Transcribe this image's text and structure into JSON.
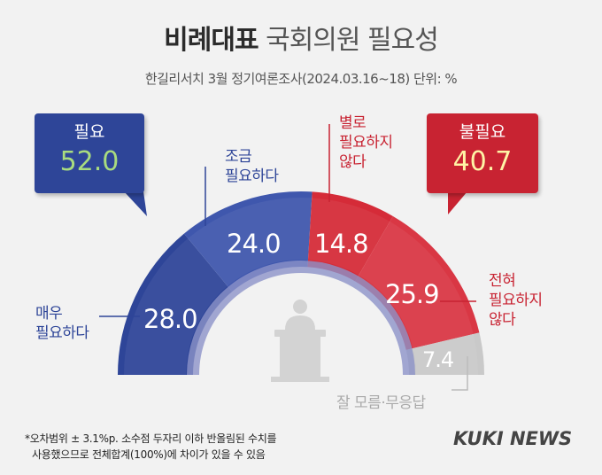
{
  "header": {
    "title_bold": "비례대표",
    "title_light": "국회의원 필요성",
    "subtitle": "한길리서치 3월 정기여론조사(2024.03.16~18) 단위: %"
  },
  "callouts": {
    "need_label": "필요",
    "need_value": "52.0",
    "noneed_label": "불필요",
    "noneed_value": "40.7"
  },
  "colors": {
    "very_needed": "#2e4598",
    "somewhat_needed": "#3f57ad",
    "not_very_needed": "#d52b38",
    "not_at_all_needed": "#d93744",
    "dont_know": "#c9c9c9"
  },
  "chart_data": {
    "type": "pie",
    "variant": "semicircle donut",
    "categories": [
      "매우 필요하다",
      "조금 필요하다",
      "별로 필요하지 않다",
      "전혀 필요하지 않다",
      "잘 모름·무응답"
    ],
    "values": [
      28.0,
      24.0,
      14.8,
      25.9,
      7.4
    ],
    "category_labels": {
      "c0_line1": "매우",
      "c0_line2": "필요하다",
      "c1_line1": "조금",
      "c1_line2": "필요하다",
      "c2_line1": "별로",
      "c2_line2": "필요하지",
      "c2_line3": "않다",
      "c3_line1": "전혀",
      "c3_line2": "필요하지",
      "c3_line3": "않다",
      "c4_line1": "잘 모름·무응답"
    },
    "value_labels": [
      "28.0",
      "24.0",
      "14.8",
      "25.9",
      "7.4"
    ]
  },
  "footer": {
    "note_line1": "*오차범위 ± 3.1%p. 소수점 두자리 이하 반올림된 수치를",
    "note_line2": "사용했으므로 전체합계(100%)에 차이가 있을 수 있음",
    "logo": "KUKI NEWS"
  }
}
